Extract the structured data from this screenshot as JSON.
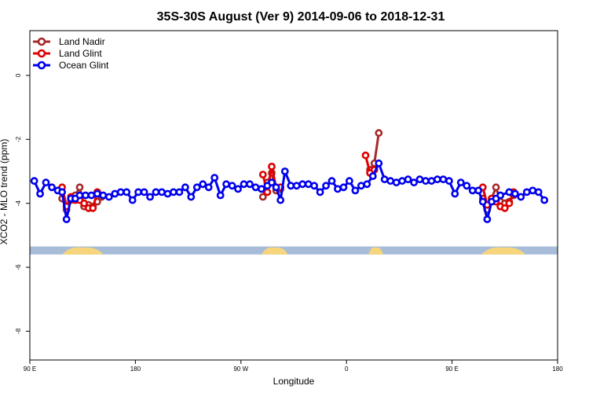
{
  "chart_data": {
    "type": "line",
    "title": "35S-30S August (Ver 9)   2014-09-06 to 2018-12-31",
    "xlabel": "Longitude",
    "ylabel": "XCO2 - MLO trend (ppm)",
    "xlim": [
      0,
      360
    ],
    "ylim": [
      -8.9,
      1.4
    ],
    "x_ticks": [
      {
        "value": 0,
        "label": "90 E"
      },
      {
        "value": 72,
        "label": "180"
      },
      {
        "value": 144,
        "label": "90 W"
      },
      {
        "value": 216,
        "label": "0"
      },
      {
        "value": 288,
        "label": "90 E"
      },
      {
        "value": 360,
        "label": "180"
      }
    ],
    "y_ticks": [
      {
        "value": 0,
        "label": "0"
      },
      {
        "value": -2,
        "label": "-2"
      },
      {
        "value": -4,
        "label": "-4"
      },
      {
        "value": -6,
        "label": "-6"
      },
      {
        "value": -8,
        "label": "-8"
      }
    ],
    "legend_position": "top-left",
    "land_band": {
      "y_top": -5.35,
      "y_bottom": -5.6,
      "ocean_color": "#a6bcd8",
      "land_color": "#f7d57c",
      "land_ranges": [
        [
          22,
          50
        ],
        [
          158,
          176
        ],
        [
          231,
          241
        ],
        [
          308,
          338
        ]
      ]
    },
    "series": [
      {
        "name": "Land Nadir",
        "color": "#a52a2a",
        "segments": [
          [
            [
              22,
              -3.85
            ],
            [
              25,
              -4.2
            ],
            [
              28,
              -3.9
            ],
            [
              31,
              -3.75
            ],
            [
              34,
              -3.5
            ],
            [
              37,
              -4.1
            ],
            [
              40,
              -4.05
            ],
            [
              43,
              -4.1
            ],
            [
              46,
              -3.95
            ],
            [
              49,
              -3.8
            ]
          ],
          [
            [
              159,
              -3.8
            ],
            [
              162,
              -3.35
            ],
            [
              165,
              -3.05
            ],
            [
              168,
              -3.6
            ],
            [
              171,
              -3.55
            ]
          ],
          [
            [
              232,
              -2.95
            ],
            [
              235,
              -2.75
            ],
            [
              238,
              -1.8
            ]
          ],
          [
            [
              309,
              -3.85
            ],
            [
              312,
              -4.2
            ],
            [
              315,
              -3.85
            ],
            [
              318,
              -3.5
            ],
            [
              321,
              -3.95
            ],
            [
              324,
              -4.0
            ],
            [
              327,
              -3.95
            ],
            [
              330,
              -3.75
            ]
          ]
        ]
      },
      {
        "name": "Land Glint",
        "color": "#e00000",
        "segments": [
          [
            [
              22,
              -3.5
            ],
            [
              25,
              -4.1
            ],
            [
              28,
              -3.8
            ],
            [
              31,
              -3.9
            ],
            [
              34,
              -3.9
            ],
            [
              37,
              -4.0
            ],
            [
              40,
              -4.15
            ],
            [
              43,
              -4.15
            ],
            [
              46,
              -3.65
            ]
          ],
          [
            [
              159,
              -3.1
            ],
            [
              162,
              -3.65
            ],
            [
              165,
              -2.85
            ],
            [
              168,
              -3.5
            ],
            [
              171,
              -3.5
            ]
          ],
          [
            [
              229,
              -2.5
            ],
            [
              232,
              -3.05
            ],
            [
              235,
              -2.95
            ]
          ],
          [
            [
              309,
              -3.5
            ],
            [
              312,
              -4.05
            ],
            [
              315,
              -3.85
            ],
            [
              318,
              -3.95
            ],
            [
              321,
              -4.1
            ],
            [
              324,
              -4.15
            ],
            [
              327,
              -4.0
            ],
            [
              330,
              -3.65
            ]
          ]
        ]
      },
      {
        "name": "Ocean Glint",
        "color": "#0000ee",
        "segments": [
          [
            [
              3,
              -3.3
            ],
            [
              7,
              -3.7
            ],
            [
              11,
              -3.35
            ],
            [
              15,
              -3.5
            ],
            [
              19,
              -3.6
            ],
            [
              22,
              -3.65
            ],
            [
              25,
              -4.5
            ],
            [
              28,
              -3.85
            ],
            [
              31,
              -3.85
            ],
            [
              34,
              -3.75
            ],
            [
              38,
              -3.75
            ],
            [
              42,
              -3.75
            ],
            [
              46,
              -3.7
            ],
            [
              50,
              -3.75
            ],
            [
              54,
              -3.8
            ],
            [
              58,
              -3.7
            ],
            [
              62,
              -3.65
            ],
            [
              66,
              -3.65
            ],
            [
              70,
              -3.9
            ],
            [
              74,
              -3.65
            ],
            [
              78,
              -3.65
            ],
            [
              82,
              -3.8
            ],
            [
              86,
              -3.65
            ],
            [
              90,
              -3.65
            ],
            [
              94,
              -3.7
            ],
            [
              98,
              -3.65
            ],
            [
              102,
              -3.65
            ],
            [
              106,
              -3.5
            ],
            [
              110,
              -3.8
            ],
            [
              114,
              -3.5
            ],
            [
              118,
              -3.4
            ],
            [
              122,
              -3.5
            ],
            [
              126,
              -3.2
            ],
            [
              130,
              -3.75
            ],
            [
              134,
              -3.4
            ],
            [
              138,
              -3.45
            ],
            [
              142,
              -3.55
            ],
            [
              146,
              -3.4
            ],
            [
              150,
              -3.4
            ],
            [
              154,
              -3.5
            ],
            [
              158,
              -3.55
            ],
            [
              162,
              -3.45
            ],
            [
              165,
              -3.35
            ],
            [
              168,
              -3.5
            ],
            [
              171,
              -3.9
            ],
            [
              174,
              -3.0
            ],
            [
              178,
              -3.45
            ],
            [
              182,
              -3.45
            ],
            [
              186,
              -3.4
            ],
            [
              190,
              -3.4
            ],
            [
              194,
              -3.45
            ],
            [
              198,
              -3.65
            ],
            [
              202,
              -3.45
            ],
            [
              206,
              -3.3
            ],
            [
              210,
              -3.55
            ],
            [
              214,
              -3.5
            ],
            [
              218,
              -3.3
            ],
            [
              222,
              -3.6
            ],
            [
              226,
              -3.45
            ],
            [
              230,
              -3.4
            ],
            [
              234,
              -3.15
            ],
            [
              238,
              -2.75
            ],
            [
              242,
              -3.25
            ],
            [
              246,
              -3.3
            ],
            [
              250,
              -3.35
            ],
            [
              254,
              -3.3
            ],
            [
              258,
              -3.25
            ],
            [
              262,
              -3.35
            ],
            [
              266,
              -3.25
            ],
            [
              270,
              -3.3
            ],
            [
              274,
              -3.3
            ],
            [
              278,
              -3.25
            ],
            [
              282,
              -3.25
            ],
            [
              286,
              -3.3
            ],
            [
              290,
              -3.7
            ],
            [
              294,
              -3.35
            ],
            [
              298,
              -3.45
            ],
            [
              302,
              -3.6
            ],
            [
              306,
              -3.6
            ],
            [
              309,
              -3.95
            ],
            [
              312,
              -4.5
            ],
            [
              315,
              -3.95
            ],
            [
              318,
              -3.85
            ],
            [
              321,
              -3.75
            ],
            [
              327,
              -3.65
            ],
            [
              331,
              -3.7
            ],
            [
              335,
              -3.8
            ],
            [
              339,
              -3.65
            ],
            [
              343,
              -3.6
            ],
            [
              347,
              -3.65
            ],
            [
              351,
              -3.9
            ]
          ]
        ]
      }
    ]
  }
}
